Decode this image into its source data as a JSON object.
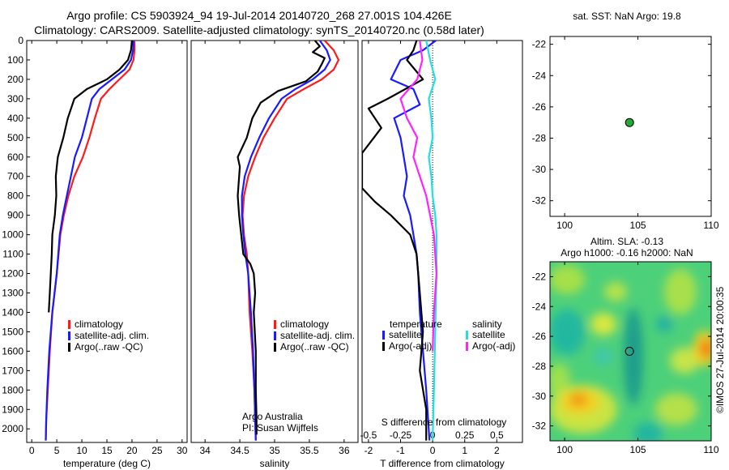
{
  "header": {
    "title_line1": "Argo profile: CS 5903924_94 19-Jul-2014 20140720_268 27.001S 104.426E",
    "title_line2": "Climatology: CARS2009. Satellite-adjusted climatology: synTS_20140720.nc (0.58d later)"
  },
  "colors": {
    "climatology": "#ff1a1a",
    "satellite": "#1a1aff",
    "argo": "#000000",
    "satellite_s": "#22e0e0",
    "argo_s": "#ff22ff",
    "marker_fill": "#22aa33"
  },
  "chart_data": [
    {
      "id": "temperature",
      "type": "line",
      "title": "",
      "xlabel": "temperature (deg C)",
      "ylabel": "",
      "xlim": [
        -1,
        31
      ],
      "ylim": [
        2070,
        0
      ],
      "xticks": [
        "0",
        "5",
        "10",
        "15",
        "20",
        "25",
        "30"
      ],
      "xtick_values": [
        0,
        5,
        10,
        15,
        20,
        25,
        30
      ],
      "yticks": [
        "0",
        "100",
        "200",
        "300",
        "400",
        "500",
        "600",
        "700",
        "800",
        "900",
        "1000",
        "1100",
        "1200",
        "1300",
        "1400",
        "1500",
        "1600",
        "1700",
        "1800",
        "1900",
        "2000"
      ],
      "ytick_values": [
        0,
        100,
        200,
        300,
        400,
        500,
        600,
        700,
        800,
        900,
        1000,
        1100,
        1200,
        1300,
        1400,
        1500,
        1600,
        1700,
        1800,
        1900,
        2000
      ],
      "legend": [
        "climatology",
        "satellite-adj. clim.",
        "Argo(..raw -QC)"
      ],
      "legend_position": "lower-middle",
      "series": [
        {
          "name": "climatology",
          "color_key": "climatology",
          "points": [
            [
              20.5,
              0
            ],
            [
              20.5,
              50
            ],
            [
              20.3,
              100
            ],
            [
              19.5,
              150
            ],
            [
              17.5,
              200
            ],
            [
              15.5,
              250
            ],
            [
              13.8,
              300
            ],
            [
              12.6,
              400
            ],
            [
              11.5,
              500
            ],
            [
              10.2,
              600
            ],
            [
              8.5,
              700
            ],
            [
              7.3,
              800
            ],
            [
              6.4,
              900
            ],
            [
              5.7,
              1000
            ],
            [
              5.0,
              1200
            ],
            [
              4.1,
              1400
            ],
            [
              3.6,
              1600
            ],
            [
              3.2,
              1800
            ],
            [
              2.9,
              1950
            ],
            [
              2.8,
              2060
            ]
          ]
        },
        {
          "name": "satellite-adj. clim.",
          "color_key": "satellite",
          "points": [
            [
              20.3,
              0
            ],
            [
              20.2,
              50
            ],
            [
              19.8,
              100
            ],
            [
              18.5,
              150
            ],
            [
              16.0,
              200
            ],
            [
              13.5,
              250
            ],
            [
              12.0,
              300
            ],
            [
              11.0,
              400
            ],
            [
              10.0,
              500
            ],
            [
              8.6,
              600
            ],
            [
              7.8,
              700
            ],
            [
              7.0,
              800
            ],
            [
              6.2,
              900
            ],
            [
              5.6,
              1000
            ],
            [
              5.0,
              1200
            ],
            [
              4.1,
              1400
            ],
            [
              3.5,
              1600
            ],
            [
              3.1,
              1800
            ],
            [
              2.9,
              1950
            ],
            [
              2.8,
              2060
            ]
          ]
        },
        {
          "name": "Argo(..raw -QC)",
          "color_key": "argo",
          "points": [
            [
              20.0,
              0
            ],
            [
              19.8,
              50
            ],
            [
              19.2,
              100
            ],
            [
              17.5,
              150
            ],
            [
              15.0,
              200
            ],
            [
              11.0,
              250
            ],
            [
              8.5,
              300
            ],
            [
              7.2,
              400
            ],
            [
              6.3,
              500
            ],
            [
              5.2,
              600
            ],
            [
              5.0,
              650
            ],
            [
              4.8,
              700
            ],
            [
              4.9,
              800
            ],
            [
              4.6,
              900
            ],
            [
              4.1,
              1000
            ],
            [
              4.0,
              1100
            ],
            [
              3.8,
              1200
            ],
            [
              3.6,
              1300
            ],
            [
              3.4,
              1400
            ]
          ]
        }
      ]
    },
    {
      "id": "salinity",
      "type": "line",
      "title": "",
      "xlabel": "salinity",
      "ylabel": "",
      "xlim": [
        33.8,
        36.2
      ],
      "ylim": [
        2070,
        0
      ],
      "xticks": [
        "34",
        "34.5",
        "35",
        "35.5",
        "36"
      ],
      "xtick_values": [
        34,
        34.5,
        35,
        35.5,
        36
      ],
      "legend": [
        "climatology",
        "satellite-adj. clim.",
        "Argo(..raw -QC)"
      ],
      "legend_position": "lower-middle",
      "annotation_line1": "Argo Australia",
      "annotation_line2": "PI: Susan Wijffels",
      "series": [
        {
          "name": "climatology",
          "color_key": "climatology",
          "points": [
            [
              35.72,
              0
            ],
            [
              35.85,
              50
            ],
            [
              35.92,
              100
            ],
            [
              35.85,
              150
            ],
            [
              35.68,
              200
            ],
            [
              35.42,
              250
            ],
            [
              35.18,
              300
            ],
            [
              35.0,
              400
            ],
            [
              34.84,
              500
            ],
            [
              34.72,
              600
            ],
            [
              34.62,
              700
            ],
            [
              34.56,
              800
            ],
            [
              34.54,
              900
            ],
            [
              34.56,
              1000
            ],
            [
              34.6,
              1100
            ],
            [
              34.62,
              1200
            ],
            [
              34.64,
              1400
            ],
            [
              34.68,
              1600
            ],
            [
              34.71,
              1800
            ],
            [
              34.72,
              1950
            ],
            [
              34.73,
              2060
            ]
          ]
        },
        {
          "name": "satellite-adj. clim.",
          "color_key": "satellite",
          "points": [
            [
              35.65,
              0
            ],
            [
              35.75,
              50
            ],
            [
              35.8,
              100
            ],
            [
              35.72,
              150
            ],
            [
              35.55,
              200
            ],
            [
              35.3,
              250
            ],
            [
              35.1,
              300
            ],
            [
              34.92,
              400
            ],
            [
              34.78,
              500
            ],
            [
              34.66,
              600
            ],
            [
              34.57,
              700
            ],
            [
              34.53,
              800
            ],
            [
              34.53,
              900
            ],
            [
              34.55,
              1000
            ],
            [
              34.58,
              1100
            ],
            [
              34.62,
              1200
            ],
            [
              34.66,
              1400
            ],
            [
              34.69,
              1600
            ],
            [
              34.71,
              1800
            ],
            [
              34.72,
              1950
            ],
            [
              34.73,
              2060
            ]
          ]
        },
        {
          "name": "Argo(..raw -QC)",
          "color_key": "argo",
          "points": [
            [
              35.58,
              0
            ],
            [
              35.65,
              30
            ],
            [
              35.55,
              60
            ],
            [
              35.72,
              90
            ],
            [
              35.68,
              120
            ],
            [
              35.62,
              160
            ],
            [
              35.45,
              210
            ],
            [
              35.05,
              260
            ],
            [
              34.8,
              320
            ],
            [
              34.68,
              400
            ],
            [
              34.6,
              500
            ],
            [
              34.47,
              600
            ],
            [
              34.5,
              650
            ],
            [
              34.47,
              800
            ],
            [
              34.49,
              900
            ],
            [
              34.52,
              1000
            ],
            [
              34.55,
              1100
            ],
            [
              34.65,
              1150
            ],
            [
              34.7,
              1200
            ],
            [
              34.72,
              1300
            ],
            [
              34.7,
              1400
            ],
            [
              34.73,
              1600
            ],
            [
              34.73,
              1800
            ],
            [
              34.74,
              1950
            ],
            [
              34.74,
              2030
            ]
          ]
        }
      ]
    },
    {
      "id": "differences",
      "type": "line",
      "title": "",
      "xlabel": "T difference from climatology",
      "xlabel_top": "S difference from climatology",
      "ylabel": "",
      "xlim": [
        -2.2,
        2.8
      ],
      "ylim": [
        2070,
        0
      ],
      "xticks": [
        "-2",
        "-1",
        "0",
        "1",
        "2"
      ],
      "xtick_values": [
        -2,
        -1,
        0,
        1,
        2
      ],
      "s_ticks": [
        "-0.5",
        "-0.25",
        "0",
        "0.25",
        "0.5"
      ],
      "s_tick_values": [
        -0.5,
        -0.25,
        0,
        0.25,
        0.5
      ],
      "s_xlim": [
        -0.55,
        0.7
      ],
      "legend_t_title": "temperature",
      "legend_s_title": "salinity",
      "legend_t": [
        "satellite",
        "Argo(-adj)"
      ],
      "legend_s": [
        "satellite",
        "Argo(-adj)"
      ],
      "series": [
        {
          "name": "satellite",
          "color_key": "satellite",
          "axis": "T",
          "points": [
            [
              0.1,
              0
            ],
            [
              -0.3,
              50
            ],
            [
              -1.0,
              100
            ],
            [
              -1.3,
              200
            ],
            [
              -0.6,
              250
            ],
            [
              -0.4,
              330
            ],
            [
              -1.2,
              400
            ],
            [
              -1.0,
              500
            ],
            [
              -0.9,
              600
            ],
            [
              -0.8,
              700
            ],
            [
              -0.9,
              800
            ],
            [
              -0.7,
              900
            ],
            [
              -0.6,
              1000
            ],
            [
              -0.5,
              1100
            ],
            [
              -0.45,
              1200
            ],
            [
              -0.4,
              1400
            ],
            [
              -0.3,
              1600
            ],
            [
              -0.2,
              1800
            ],
            [
              -0.1,
              2060
            ]
          ]
        },
        {
          "name": "Argo(-adj)",
          "color_key": "argo",
          "axis": "T",
          "points": [
            [
              -0.5,
              0
            ],
            [
              -0.6,
              50
            ],
            [
              -0.8,
              100
            ],
            [
              -0.3,
              200
            ],
            [
              -1.4,
              300
            ],
            [
              -2.0,
              350
            ],
            [
              -1.6,
              450
            ],
            [
              -2.2,
              580
            ],
            [
              -2.2,
              760
            ],
            [
              -1.8,
              830
            ],
            [
              -1.3,
              900
            ],
            [
              -0.7,
              1000
            ],
            [
              -0.5,
              1100
            ],
            [
              -0.4,
              1300
            ],
            [
              -0.3,
              1500
            ],
            [
              -0.4,
              1700
            ],
            [
              -0.2,
              1900
            ],
            [
              -0.2,
              2060
            ]
          ]
        },
        {
          "name": "satellite",
          "color_key": "satellite_s",
          "axis": "S",
          "points": [
            [
              -0.05,
              0
            ],
            [
              -0.02,
              100
            ],
            [
              0.02,
              200
            ],
            [
              -0.03,
              300
            ],
            [
              -0.01,
              400
            ],
            [
              0.0,
              500
            ],
            [
              -0.03,
              600
            ],
            [
              -0.01,
              700
            ],
            [
              0.0,
              800
            ],
            [
              0.02,
              900
            ],
            [
              0.03,
              1000
            ],
            [
              0.03,
              1200
            ],
            [
              0.02,
              1500
            ],
            [
              0.01,
              1800
            ],
            [
              0.0,
              2060
            ]
          ]
        },
        {
          "name": "Argo(-adj)",
          "color_key": "argo_s",
          "axis": "S",
          "points": [
            [
              -0.1,
              0
            ],
            [
              -0.08,
              100
            ],
            [
              -0.12,
              200
            ],
            [
              -0.25,
              300
            ],
            [
              -0.2,
              400
            ],
            [
              -0.12,
              500
            ],
            [
              -0.15,
              600
            ],
            [
              -0.1,
              700
            ],
            [
              -0.05,
              800
            ],
            [
              -0.02,
              900
            ],
            [
              0.01,
              1000
            ],
            [
              0.03,
              1200
            ],
            [
              0.01,
              1400
            ],
            [
              0.0,
              1600
            ]
          ]
        }
      ]
    },
    {
      "id": "sst_map",
      "type": "scatter",
      "title": "sat. SST: NaN Argo: 19.8",
      "xlabel": "",
      "ylabel": "",
      "xlim": [
        99,
        110
      ],
      "ylim": [
        -33,
        -21.5
      ],
      "xticks": [
        "100",
        "105",
        "110"
      ],
      "xtick_values": [
        100,
        105,
        110
      ],
      "yticks": [
        "-22",
        "-24",
        "-26",
        "-28",
        "-30",
        "-32"
      ],
      "ytick_values": [
        -22,
        -24,
        -26,
        -28,
        -30,
        -32
      ],
      "points": [
        [
          104.426,
          -27.001
        ]
      ]
    },
    {
      "id": "sla_map",
      "type": "heatmap",
      "title_line1": "Altim. SLA: -0.13",
      "title_line2": "Argo h1000: -0.16 h2000: NaN",
      "xlabel": "",
      "ylabel": "",
      "xlim": [
        99,
        110
      ],
      "ylim": [
        -33,
        -21
      ],
      "xticks": [
        "100",
        "105",
        "110"
      ],
      "xtick_values": [
        100,
        105,
        110
      ],
      "yticks": [
        "-22",
        "-24",
        "-26",
        "-28",
        "-30",
        "-32"
      ],
      "ytick_values": [
        -22,
        -24,
        -26,
        -28,
        -30,
        -32
      ],
      "points": [
        [
          104.426,
          -27.001
        ]
      ]
    }
  ],
  "side_label": "©IMOS 27-Jul-2014 20:00:35"
}
